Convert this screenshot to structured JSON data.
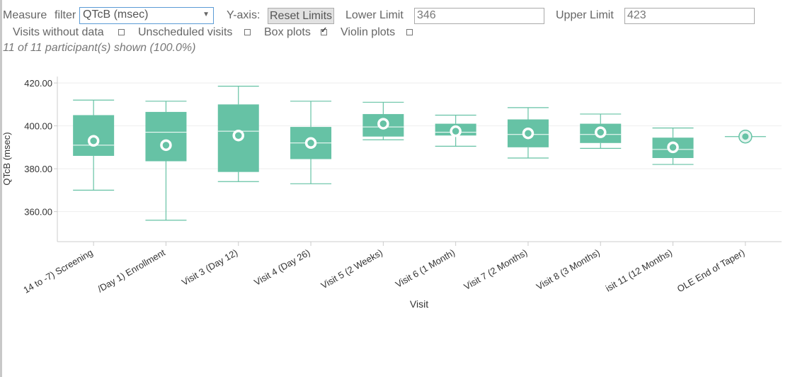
{
  "controls": {
    "measure_label": "Measure",
    "filter_label": "filter",
    "measure_selected": "QTcB (msec)",
    "yaxis_label": "Y-axis:",
    "reset_label": "Reset Limits",
    "lower_label": "Lower Limit",
    "lower_value": "346",
    "upper_label": "Upper Limit",
    "upper_value": "423",
    "options": [
      {
        "label": "Visits without data",
        "checked": false
      },
      {
        "label": "Unscheduled visits",
        "checked": false
      },
      {
        "label": "Box plots",
        "checked": true
      },
      {
        "label": "Violin plots",
        "checked": false
      }
    ],
    "status": "11 of 11 participant(s) shown (100.0%)"
  },
  "colors": {
    "box": "#66c2a5",
    "grid": "#eeeeee",
    "axis": "#cccccc",
    "text": "#333333"
  },
  "chart_data": {
    "type": "box",
    "xlabel": "Visit",
    "ylabel": "QTcB (msec)",
    "ylim": [
      346,
      423
    ],
    "yticks": [
      "360.00",
      "380.00",
      "400.00",
      "420.00"
    ],
    "grid": true,
    "categories": [
      "14 to -7) Screening",
      "/Day 1) Enrollment",
      "Visit 3 (Day 12)",
      "Visit 4 (Day 26)",
      "Visit 5 (2 Weeks)",
      "Visit 6 (1 Month)",
      "Visit 7 (2 Months)",
      "Visit 8 (3 Months)",
      "isit 11 (12 Months)",
      "OLE End of Taper)"
    ],
    "boxes": [
      {
        "min": 370,
        "q1": 386,
        "median": 391,
        "q3": 405,
        "max": 412,
        "mean": 393
      },
      {
        "min": 356,
        "q1": 383.5,
        "median": 397,
        "q3": 406.5,
        "max": 411.5,
        "mean": 391
      },
      {
        "min": 374,
        "q1": 378.5,
        "median": 397.5,
        "q3": 410,
        "max": 418.5,
        "mean": 395.5
      },
      {
        "min": 373,
        "q1": 384.5,
        "median": 392,
        "q3": 399.5,
        "max": 411.5,
        "mean": 392
      },
      {
        "min": 393.5,
        "q1": 395,
        "median": 399.5,
        "q3": 405.5,
        "max": 411,
        "mean": 401
      },
      {
        "min": 390.5,
        "q1": 395.5,
        "median": 397,
        "q3": 401,
        "max": 405,
        "mean": 397.5
      },
      {
        "min": 385,
        "q1": 390,
        "median": 396,
        "q3": 403,
        "max": 408.5,
        "mean": 396.5
      },
      {
        "min": 389.5,
        "q1": 392,
        "median": 396,
        "q3": 401,
        "max": 405.5,
        "mean": 397
      },
      {
        "min": 382,
        "q1": 385,
        "median": 389,
        "q3": 394.5,
        "max": 399,
        "mean": 390
      },
      {
        "min": 395,
        "q1": 395,
        "median": 395,
        "q3": 395,
        "max": 395,
        "mean": 395
      }
    ]
  }
}
